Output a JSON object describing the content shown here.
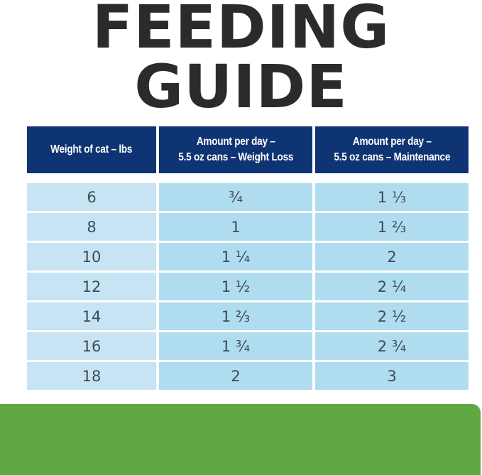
{
  "title": {
    "line1": "FEEDING",
    "line2": "GUIDE"
  },
  "table": {
    "headers": [
      [
        "Weight of cat – lbs"
      ],
      [
        "Amount per day –",
        "5.5 oz cans – Weight Loss"
      ],
      [
        "Amount per day –",
        "5.5 oz cans – Maintenance"
      ]
    ],
    "rows": [
      [
        "6",
        "¾",
        "1 ⅓"
      ],
      [
        "8",
        "1",
        "1 ⅔"
      ],
      [
        "10",
        "1 ¼",
        "2"
      ],
      [
        "12",
        "1 ½",
        "2 ¼"
      ],
      [
        "14",
        "1 ⅔",
        "2 ½"
      ],
      [
        "16",
        "1 ¾",
        "2 ¾"
      ],
      [
        "18",
        "2",
        "3"
      ]
    ]
  },
  "colors": {
    "header": "#0f3473",
    "weight_cell": "#c6e4f4",
    "amount_cell": "#b0dcf0",
    "footer_band": "#60a843",
    "title": "#2b2b2b"
  }
}
